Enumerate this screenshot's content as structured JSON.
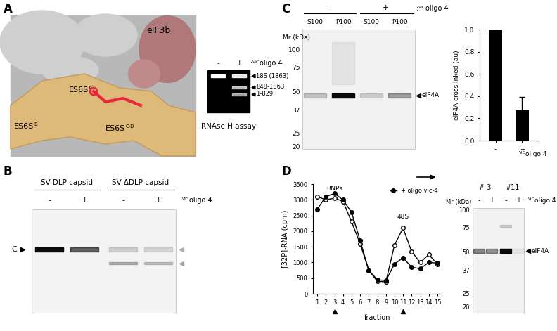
{
  "panels": {
    "A": {
      "label": "A",
      "structure_labels": {
        "eif3b": "eIF3b",
        "es6sa": [
          {
            "text": "ES6S"
          },
          {
            "sup": "A"
          }
        ],
        "es6sb": [
          {
            "text": "ES6S"
          },
          {
            "sup": "B"
          }
        ],
        "es6scd": [
          {
            "text": "ES6S"
          },
          {
            "sup": "C-D"
          }
        ]
      },
      "gel": {
        "lanes": [
          "-",
          "+"
        ],
        "treatment": [
          {
            "text": ":"
          },
          {
            "sup": "VIC"
          },
          {
            "text": "oligo 4"
          }
        ],
        "bands": [
          "18S (1863)",
          "848-1863",
          "1-829"
        ],
        "caption": "RNAse H assay"
      }
    },
    "B": {
      "label": "B",
      "groups": [
        "SV-DLP capsid",
        "SV-ΔDLP capsid"
      ],
      "lanes": [
        "-",
        "+",
        "-",
        "+"
      ],
      "treatment": [
        {
          "text": ":"
        },
        {
          "sup": "VIC"
        },
        {
          "text": "oligo 4"
        }
      ],
      "band": "C"
    },
    "C": {
      "label": "C",
      "gel": {
        "groups": [
          "-",
          "+"
        ],
        "lanes": [
          "S100",
          "P100",
          "S100",
          "P100"
        ],
        "treatment": [
          {
            "text": ":"
          },
          {
            "sup": "VIC"
          },
          {
            "text": "oligo 4"
          }
        ],
        "mr_label": "Mr (kDa)",
        "mr_ticks": [
          100,
          75,
          50,
          37,
          25,
          20
        ],
        "band": "eIF4A"
      }
    },
    "D": {
      "label": "D",
      "gel": {
        "groups": [
          "# 3",
          "#11"
        ],
        "sampled_fractions": [
          3,
          11
        ],
        "lanes": [
          "-",
          "+",
          "-",
          "+"
        ],
        "treatment": [
          {
            "text": ":"
          },
          {
            "sup": "VIC"
          },
          {
            "text": "oligo 4"
          }
        ],
        "mr_label": "Mr (kDa)",
        "mr_ticks": [
          100,
          75,
          50,
          37,
          25,
          20
        ],
        "band": "eIF4A"
      }
    }
  },
  "chart_data": [
    {
      "type": "bar",
      "ylabel": "eIF4A crosslinked (au)",
      "xlabel": [
        {
          "text": ":"
        },
        {
          "sup": "VIC"
        },
        {
          "text": "oligo 4"
        }
      ],
      "categories": [
        "-",
        "+"
      ],
      "values": [
        1.0,
        0.27
      ],
      "error": [
        0.0,
        0.12
      ],
      "color": "#000000",
      "ylim": [
        0.0,
        1.0
      ],
      "yticks": [
        0.0,
        0.2,
        0.4,
        0.6,
        0.8,
        1.0
      ]
    },
    {
      "type": "line",
      "xlabel": "fraction",
      "ylabel": "[32P]-RNA (cpm)",
      "x": [
        1,
        2,
        3,
        4,
        5,
        6,
        7,
        8,
        9,
        10,
        11,
        12,
        13,
        14,
        15
      ],
      "xlim": [
        0.5,
        15.5
      ],
      "xticks": [
        1,
        2,
        3,
        4,
        5,
        6,
        7,
        8,
        9,
        10,
        11,
        12,
        13,
        14,
        15
      ],
      "ylim": [
        0,
        3500
      ],
      "yticks": [
        0,
        500,
        1000,
        1500,
        2000,
        2500,
        3000,
        3500
      ],
      "legend": "upper right",
      "series": [
        {
          "color": "#000000",
          "marker": "open_circle",
          "values": [
            3100,
            3000,
            3050,
            2950,
            2300,
            1600,
            750,
            400,
            380,
            1550,
            2100,
            1350,
            1000,
            1250,
            950
          ]
        },
        {
          "name": "+ oligo vic-4",
          "color": "#000000",
          "marker": "filled_circle",
          "values": [
            2700,
            3100,
            3200,
            3000,
            2600,
            1700,
            750,
            450,
            420,
            950,
            1150,
            850,
            800,
            1000,
            980
          ]
        }
      ],
      "annotations": [
        {
          "text": "RNPs",
          "x": 3,
          "y": 3260
        },
        {
          "text": "48S",
          "x": 11,
          "y": 2350
        }
      ]
    }
  ]
}
